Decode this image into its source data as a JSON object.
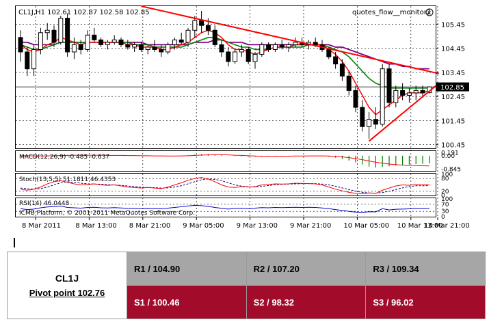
{
  "chart_data": {
    "type": "candlestick",
    "main_label": "CL1J,H1  102.61 102.87 102.58 102.85",
    "indicator_label": "quotes_flow__monitor2",
    "price_axis_ticks": [
      "105.45",
      "104.45",
      "103.45",
      "102.45",
      "101.45",
      "100.45"
    ],
    "price_axis_values": [
      105.45,
      104.45,
      103.45,
      102.45,
      101.45,
      100.45
    ],
    "ylim": [
      100.3,
      106.2
    ],
    "current_price_label": "102.85",
    "current_price": 102.85,
    "x_tick_labels": [
      "8 Mar 2011",
      "8 Mar 13:00",
      "8 Mar 21:00",
      "9 Mar 05:00",
      "9 Mar 13:00",
      "9 Mar 21:00",
      "10 Mar 05:00",
      "10 Mar 13:00",
      "10 Mar 21:00"
    ],
    "candles": [
      [
        104.9,
        105.2,
        103.9,
        104.3
      ],
      [
        104.3,
        104.5,
        103.3,
        103.6
      ],
      [
        103.6,
        104.6,
        103.3,
        104.4
      ],
      [
        104.4,
        105.3,
        104.2,
        105.1
      ],
      [
        105.1,
        105.5,
        104.8,
        105.2
      ],
      [
        105.2,
        105.4,
        104.5,
        104.7
      ],
      [
        104.7,
        105.8,
        104.6,
        105.7
      ],
      [
        105.7,
        105.9,
        104.1,
        104.3
      ],
      [
        104.3,
        104.9,
        104.0,
        104.6
      ],
      [
        104.6,
        104.8,
        104.2,
        104.4
      ],
      [
        104.4,
        105.2,
        104.3,
        105.0
      ],
      [
        105.0,
        105.3,
        104.7,
        104.8
      ],
      [
        104.8,
        104.9,
        104.5,
        104.6
      ],
      [
        104.6,
        104.8,
        104.4,
        104.7
      ],
      [
        104.7,
        105.0,
        104.6,
        104.8
      ],
      [
        104.8,
        104.9,
        104.5,
        104.6
      ],
      [
        104.6,
        104.8,
        104.4,
        104.5
      ],
      [
        104.5,
        104.7,
        104.3,
        104.6
      ],
      [
        104.6,
        104.7,
        104.3,
        104.4
      ],
      [
        104.4,
        104.6,
        104.2,
        104.5
      ],
      [
        104.5,
        104.8,
        104.3,
        104.4
      ],
      [
        104.4,
        104.6,
        104.1,
        104.3
      ],
      [
        104.3,
        104.7,
        104.2,
        104.6
      ],
      [
        104.6,
        104.9,
        104.4,
        104.8
      ],
      [
        104.8,
        105.1,
        104.6,
        104.7
      ],
      [
        104.7,
        105.3,
        104.5,
        105.2
      ],
      [
        105.2,
        105.8,
        104.9,
        105.6
      ],
      [
        105.6,
        106.0,
        105.1,
        105.4
      ],
      [
        105.4,
        105.7,
        105.0,
        105.2
      ],
      [
        105.2,
        105.4,
        104.5,
        104.6
      ],
      [
        104.6,
        104.8,
        104.1,
        104.3
      ],
      [
        104.3,
        104.5,
        103.7,
        103.9
      ],
      [
        103.9,
        104.4,
        103.8,
        104.3
      ],
      [
        104.3,
        104.6,
        104.1,
        104.4
      ],
      [
        104.4,
        104.5,
        103.8,
        103.9
      ],
      [
        103.9,
        104.3,
        103.6,
        104.2
      ],
      [
        104.2,
        104.7,
        104.1,
        104.6
      ],
      [
        104.6,
        104.7,
        104.3,
        104.4
      ],
      [
        104.4,
        104.7,
        104.3,
        104.6
      ],
      [
        104.6,
        104.8,
        104.4,
        104.5
      ],
      [
        104.5,
        104.7,
        104.3,
        104.6
      ],
      [
        104.6,
        104.9,
        104.5,
        104.7
      ],
      [
        104.7,
        104.9,
        104.5,
        104.6
      ],
      [
        104.6,
        104.8,
        104.4,
        104.7
      ],
      [
        104.7,
        104.9,
        104.5,
        104.6
      ],
      [
        104.6,
        104.8,
        104.3,
        104.4
      ],
      [
        104.4,
        104.5,
        104.0,
        104.1
      ],
      [
        104.1,
        104.3,
        103.6,
        103.8
      ],
      [
        103.8,
        104.0,
        103.1,
        103.3
      ],
      [
        103.3,
        103.5,
        102.5,
        102.7
      ],
      [
        102.7,
        102.9,
        101.8,
        102.0
      ],
      [
        102.0,
        102.3,
        101.0,
        101.2
      ],
      [
        101.2,
        101.8,
        100.7,
        101.5
      ],
      [
        101.5,
        102.0,
        101.1,
        101.3
      ],
      [
        101.3,
        103.8,
        101.2,
        103.6
      ],
      [
        103.6,
        103.8,
        102.0,
        102.2
      ],
      [
        102.2,
        102.9,
        102.0,
        102.7
      ],
      [
        102.7,
        103.0,
        102.3,
        102.5
      ],
      [
        102.5,
        102.8,
        102.2,
        102.6
      ],
      [
        102.6,
        102.9,
        102.3,
        102.7
      ],
      [
        102.7,
        102.9,
        102.4,
        102.6
      ],
      [
        102.61,
        102.87,
        102.58,
        102.85
      ]
    ],
    "ma_fast": [
      104.6,
      104.4,
      104.3,
      104.4,
      104.6,
      104.7,
      104.9,
      104.8,
      104.7,
      104.6,
      104.7,
      104.7,
      104.7,
      104.7,
      104.7,
      104.7,
      104.6,
      104.6,
      104.5,
      104.5,
      104.5,
      104.4,
      104.4,
      104.5,
      104.6,
      104.7,
      104.9,
      105.1,
      105.2,
      105.1,
      104.9,
      104.6,
      104.4,
      104.4,
      104.3,
      104.2,
      104.3,
      104.4,
      104.5,
      104.5,
      104.5,
      104.6,
      104.6,
      104.6,
      104.6,
      104.6,
      104.4,
      104.2,
      103.9,
      103.5,
      103.0,
      102.5,
      102.0,
      101.7,
      101.9,
      102.1,
      102.3,
      102.5,
      102.6,
      102.6,
      102.6,
      102.7
    ],
    "ma_mid": [
      104.6,
      104.5,
      104.4,
      104.4,
      104.5,
      104.6,
      104.7,
      104.7,
      104.7,
      104.7,
      104.7,
      104.7,
      104.7,
      104.7,
      104.7,
      104.7,
      104.7,
      104.6,
      104.6,
      104.6,
      104.5,
      104.5,
      104.5,
      104.5,
      104.5,
      104.6,
      104.7,
      104.8,
      104.9,
      104.9,
      104.8,
      104.7,
      104.6,
      104.5,
      104.5,
      104.4,
      104.4,
      104.4,
      104.5,
      104.5,
      104.5,
      104.5,
      104.5,
      104.6,
      104.6,
      104.6,
      104.5,
      104.4,
      104.3,
      104.1,
      103.8,
      103.5,
      103.2,
      103.0,
      102.9,
      102.8,
      102.8,
      102.8,
      102.8,
      102.8,
      102.8,
      102.8
    ],
    "ma_slow": [
      104.7,
      104.7,
      104.6,
      104.6,
      104.6,
      104.6,
      104.7,
      104.7,
      104.7,
      104.7,
      104.7,
      104.7,
      104.7,
      104.7,
      104.7,
      104.7,
      104.7,
      104.7,
      104.7,
      104.6,
      104.6,
      104.6,
      104.6,
      104.6,
      104.6,
      104.6,
      104.7,
      104.7,
      104.7,
      104.8,
      104.8,
      104.7,
      104.7,
      104.7,
      104.6,
      104.6,
      104.6,
      104.6,
      104.6,
      104.6,
      104.6,
      104.6,
      104.6,
      104.6,
      104.6,
      104.6,
      104.6,
      104.5,
      104.5,
      104.4,
      104.3,
      104.2,
      104.1,
      104.0,
      103.9,
      103.8,
      103.8,
      103.7,
      103.7,
      103.6,
      103.6,
      103.6
    ],
    "trendlines": [
      {
        "from": [
          18,
          106.2
        ],
        "to": [
          61,
          103.4
        ]
      },
      {
        "from": [
          52,
          100.6
        ],
        "to": [
          61,
          103.0
        ]
      }
    ],
    "colors": {
      "candle_up": "#ffffff",
      "candle_down": "#000000",
      "ma_fast": "#ff0000",
      "ma_mid": "#008000",
      "ma_slow": "#800080",
      "trendline": "#ff0000",
      "macd_hist": "#008000",
      "macd_signal": "#ff0000",
      "stoch_main": "#ff0000",
      "stoch_signal": "#000080",
      "rsi": "#0000cc"
    },
    "macd": {
      "label": "MACD(12,26,9) -0.485 -0.637",
      "ticks": [
        "0.191",
        "0.00",
        "-0.845"
      ],
      "tick_values": [
        0.191,
        0.0,
        -0.845
      ],
      "ylim": [
        -0.95,
        0.25
      ],
      "hist": [
        0,
        -0.01,
        -0.02,
        -0.01,
        0.0,
        0.02,
        0.05,
        0.05,
        0.04,
        0.03,
        0.03,
        0.03,
        0.02,
        0.02,
        0.02,
        0.01,
        0.0,
        -0.01,
        -0.02,
        -0.02,
        -0.03,
        -0.03,
        -0.03,
        -0.02,
        0.0,
        0.03,
        0.07,
        0.1,
        0.11,
        0.09,
        0.05,
        0.0,
        -0.03,
        -0.04,
        -0.06,
        -0.07,
        -0.06,
        -0.05,
        -0.04,
        -0.03,
        -0.02,
        -0.01,
        0.0,
        0.0,
        0.0,
        -0.02,
        -0.06,
        -0.12,
        -0.2,
        -0.3,
        -0.42,
        -0.55,
        -0.68,
        -0.74,
        -0.7,
        -0.66,
        -0.62,
        -0.58,
        -0.55,
        -0.52,
        -0.5,
        -0.485
      ],
      "signal": [
        0,
        0,
        -0.01,
        -0.01,
        -0.01,
        0.0,
        0.01,
        0.02,
        0.03,
        0.03,
        0.03,
        0.03,
        0.03,
        0.02,
        0.02,
        0.02,
        0.01,
        0.01,
        0.0,
        0.0,
        -0.01,
        -0.01,
        -0.02,
        -0.02,
        -0.01,
        0.0,
        0.02,
        0.04,
        0.05,
        0.06,
        0.06,
        0.05,
        0.03,
        0.02,
        0.0,
        -0.02,
        -0.03,
        -0.03,
        -0.03,
        -0.03,
        -0.03,
        -0.02,
        -0.02,
        -0.01,
        -0.01,
        -0.01,
        -0.02,
        -0.04,
        -0.07,
        -0.12,
        -0.18,
        -0.25,
        -0.33,
        -0.41,
        -0.47,
        -0.52,
        -0.56,
        -0.59,
        -0.61,
        -0.62,
        -0.63,
        -0.637
      ]
    },
    "stoch": {
      "label": "Stoch(13,5,5) 51.1811 46.4353",
      "ticks": [
        "100",
        "80",
        "20",
        "0"
      ],
      "tick_values": [
        100,
        80,
        20,
        0
      ],
      "ylim": [
        0,
        100
      ],
      "main": [
        30,
        25,
        30,
        40,
        55,
        65,
        70,
        62,
        55,
        50,
        52,
        55,
        50,
        48,
        50,
        45,
        40,
        38,
        35,
        38,
        35,
        32,
        40,
        50,
        60,
        72,
        80,
        85,
        78,
        65,
        50,
        40,
        38,
        42,
        40,
        42,
        50,
        52,
        55,
        54,
        55,
        58,
        57,
        56,
        55,
        50,
        40,
        30,
        22,
        15,
        10,
        8,
        12,
        10,
        25,
        35,
        45,
        50,
        48,
        52,
        51,
        51.18
      ],
      "signal": [
        35,
        32,
        30,
        32,
        40,
        50,
        60,
        65,
        62,
        58,
        55,
        54,
        53,
        51,
        50,
        48,
        45,
        42,
        39,
        38,
        37,
        35,
        36,
        40,
        46,
        55,
        65,
        74,
        78,
        76,
        70,
        60,
        50,
        44,
        41,
        40,
        43,
        47,
        51,
        53,
        54,
        55,
        56,
        56,
        56,
        54,
        50,
        44,
        36,
        28,
        21,
        15,
        12,
        11,
        14,
        20,
        28,
        36,
        42,
        46,
        46,
        46.44
      ]
    },
    "rsi": {
      "label": "RSI(14) 46.0448",
      "ticks": [
        "100",
        "70",
        "30",
        "0"
      ],
      "tick_values": [
        100,
        70,
        30,
        0
      ],
      "ylim": [
        0,
        100
      ],
      "values": [
        45,
        40,
        43,
        50,
        55,
        57,
        60,
        52,
        50,
        48,
        52,
        53,
        50,
        49,
        51,
        49,
        47,
        46,
        45,
        46,
        45,
        44,
        48,
        52,
        56,
        60,
        64,
        62,
        58,
        52,
        47,
        43,
        46,
        48,
        45,
        48,
        51,
        50,
        52,
        51,
        52,
        53,
        52,
        53,
        52,
        49,
        45,
        40,
        35,
        30,
        26,
        24,
        28,
        27,
        45,
        38,
        42,
        43,
        44,
        45,
        45,
        46.04
      ]
    },
    "copyright": "ICMB Platform, © 2001-2011 MetaQuotes Software Corp."
  },
  "pivot_table": {
    "symbol": "CL1J",
    "pivot": "Pivot point 102.76",
    "resistance": [
      "R1 / 104.90",
      "R2  / 107.20",
      "R3 / 109.34"
    ],
    "support": [
      "S1 / 100.46",
      "S2 /  98.32",
      "S3 /  96.02"
    ]
  }
}
